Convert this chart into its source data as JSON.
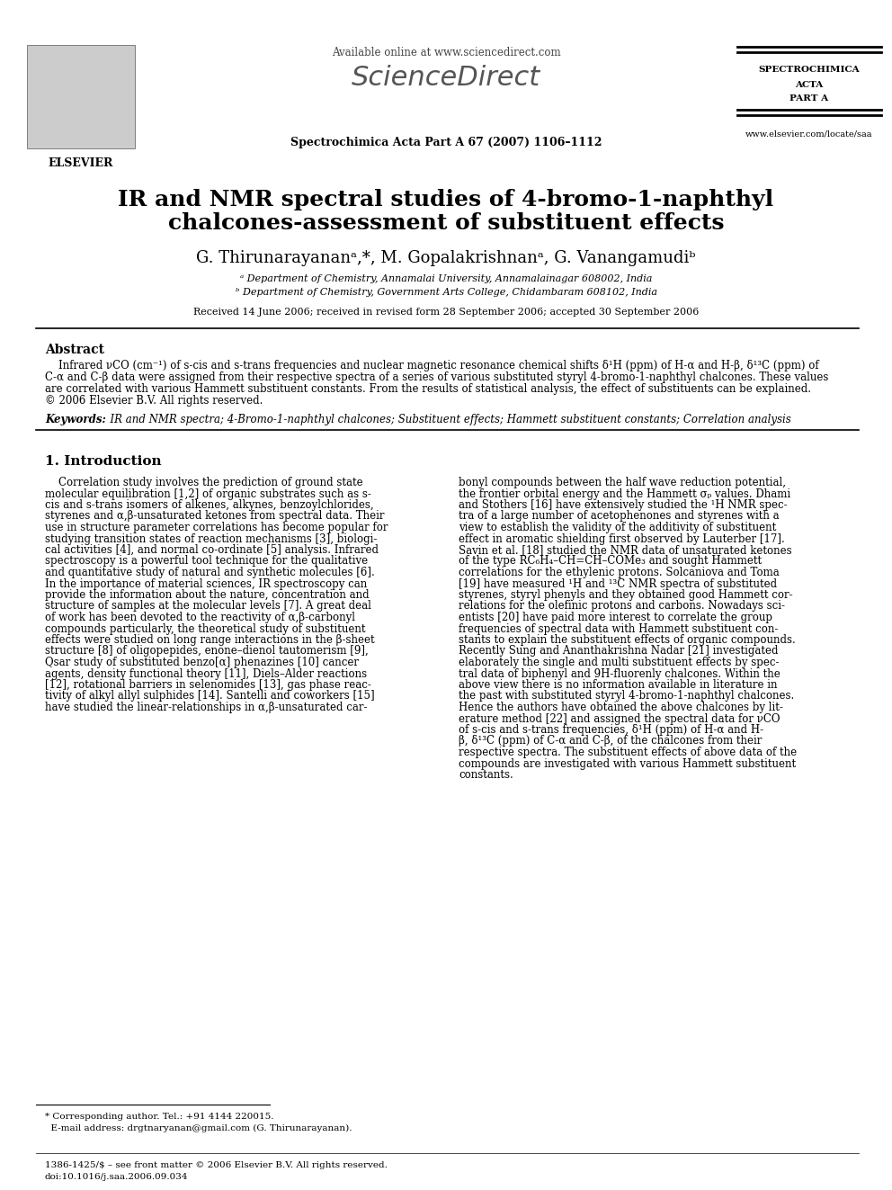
{
  "title_line1": "IR and NMR spectral studies of 4-bromo-1-naphthyl",
  "title_line2": "chalcones-assessment of substituent effects",
  "authors": "G. Thirunarayananᵃ,*, M. Gopalakrishnanᵃ, G. Vanangamudiᵇ",
  "affil_a": "ᵃ Department of Chemistry, Annamalai University, Annamalainagar 608002, India",
  "affil_b": "ᵇ Department of Chemistry, Government Arts College, Chidambaram 608102, India",
  "received": "Received 14 June 2006; received in revised form 28 September 2006; accepted 30 September 2006",
  "journal_header": "Available online at www.sciencedirect.com",
  "journal_name": "Spectrochimica Acta Part A 67 (2007) 1106–1112",
  "journal_abbrev_line1": "SPECTROCHIMICA",
  "journal_abbrev_line2": "ACTA",
  "journal_abbrev_line3": "PART A",
  "journal_url": "www.elsevier.com/locate/saa",
  "elsevier_text": "ELSEVIER",
  "abstract_title": "Abstract",
  "abstract_lines": [
    "    Infrared νCO (cm⁻¹) of s-cis and s-trans frequencies and nuclear magnetic resonance chemical shifts δ¹H (ppm) of H-α and H-β, δ¹³C (ppm) of",
    "C-α and C-β data were assigned from their respective spectra of a series of various substituted styryl 4-bromo-1-naphthyl chalcones. These values",
    "are correlated with various Hammett substituent constants. From the results of statistical analysis, the effect of substituents can be explained.",
    "© 2006 Elsevier B.V. All rights reserved."
  ],
  "keywords_label": "Keywords:",
  "keywords_text": "  IR and NMR spectra; 4-Bromo-1-naphthyl chalcones; Substituent effects; Hammett substituent constants; Correlation analysis",
  "section1_title": "1. Introduction",
  "col1_lines": [
    "    Correlation study involves the prediction of ground state",
    "molecular equilibration [1,2] of organic substrates such as s-",
    "cis and s-trans isomers of alkenes, alkynes, benzoylchlorides,",
    "styrenes and α,β-unsaturated ketones from spectral data. Their",
    "use in structure parameter correlations has become popular for",
    "studying transition states of reaction mechanisms [3], biologi-",
    "cal activities [4], and normal co-ordinate [5] analysis. Infrared",
    "spectroscopy is a powerful tool technique for the qualitative",
    "and quantitative study of natural and synthetic molecules [6].",
    "In the importance of material sciences, IR spectroscopy can",
    "provide the information about the nature, concentration and",
    "structure of samples at the molecular levels [7]. A great deal",
    "of work has been devoted to the reactivity of α,β-carbonyl",
    "compounds particularly, the theoretical study of substituent",
    "effects were studied on long range interactions in the β-sheet",
    "structure [8] of oligopepides, enone–dienol tautomerism [9],",
    "Qsar study of substituted benzo[α] phenazines [10] cancer",
    "agents, density functional theory [11], Diels–Alder reactions",
    "[12], rotational barriers in selenomides [13], gas phase reac-",
    "tivity of alkyl allyl sulphides [14]. Santelli and coworkers [15]",
    "have studied the linear-relationships in α,β-unsaturated car-"
  ],
  "col2_lines": [
    "bonyl compounds between the half wave reduction potential,",
    "the frontier orbital energy and the Hammett σₚ values. Dhami",
    "and Stothers [16] have extensively studied the ¹H NMR spec-",
    "tra of a large number of acetophenones and styrenes with a",
    "view to establish the validity of the additivity of substituent",
    "effect in aromatic shielding first observed by Lauterber [17].",
    "Savin et al. [18] studied the NMR data of unsaturated ketones",
    "of the type RC₆H₄–CH=CH–COMe₃ and sought Hammett",
    "correlations for the ethylenic protons. Solcaniova and Toma",
    "[19] have measured ¹H and ¹³C NMR spectra of substituted",
    "styrenes, styryl phenyls and they obtained good Hammett cor-",
    "relations for the olefinic protons and carbons. Nowadays sci-",
    "entists [20] have paid more interest to correlate the group",
    "frequencies of spectral data with Hammett substituent con-",
    "stants to explain the substituent effects of organic compounds.",
    "Recently Sung and Ananthakrishna Nadar [21] investigated",
    "elaborately the single and multi substituent effects by spec-",
    "tral data of biphenyl and 9H-fluorenly chalcones. Within the",
    "above view there is no information available in literature in",
    "the past with substituted styryl 4-bromo-1-naphthyl chalcones.",
    "Hence the authors have obtained the above chalcones by lit-",
    "erature method [22] and assigned the spectral data for νCO",
    "of s-cis and s-trans frequencies, δ¹H (ppm) of H-α and H-",
    "β, δ¹³C (ppm) of C-α and C-β, of the chalcones from their",
    "respective spectra. The substituent effects of above data of the",
    "compounds are investigated with various Hammett substituent",
    "constants."
  ],
  "footnote1": "* Corresponding author. Tel.: +91 4144 220015.",
  "footnote2": "  E-mail address: drgtnaryanan@gmail.com (G. Thirunarayanan).",
  "footnote3": "1386-1425/$ – see front matter © 2006 Elsevier B.V. All rights reserved.",
  "footnote4": "doi:10.1016/j.saa.2006.09.034",
  "background_color": "#ffffff",
  "text_color": "#000000",
  "title_fontsize": 18,
  "author_fontsize": 13,
  "body_fontsize": 8.5,
  "small_fontsize": 7.5
}
